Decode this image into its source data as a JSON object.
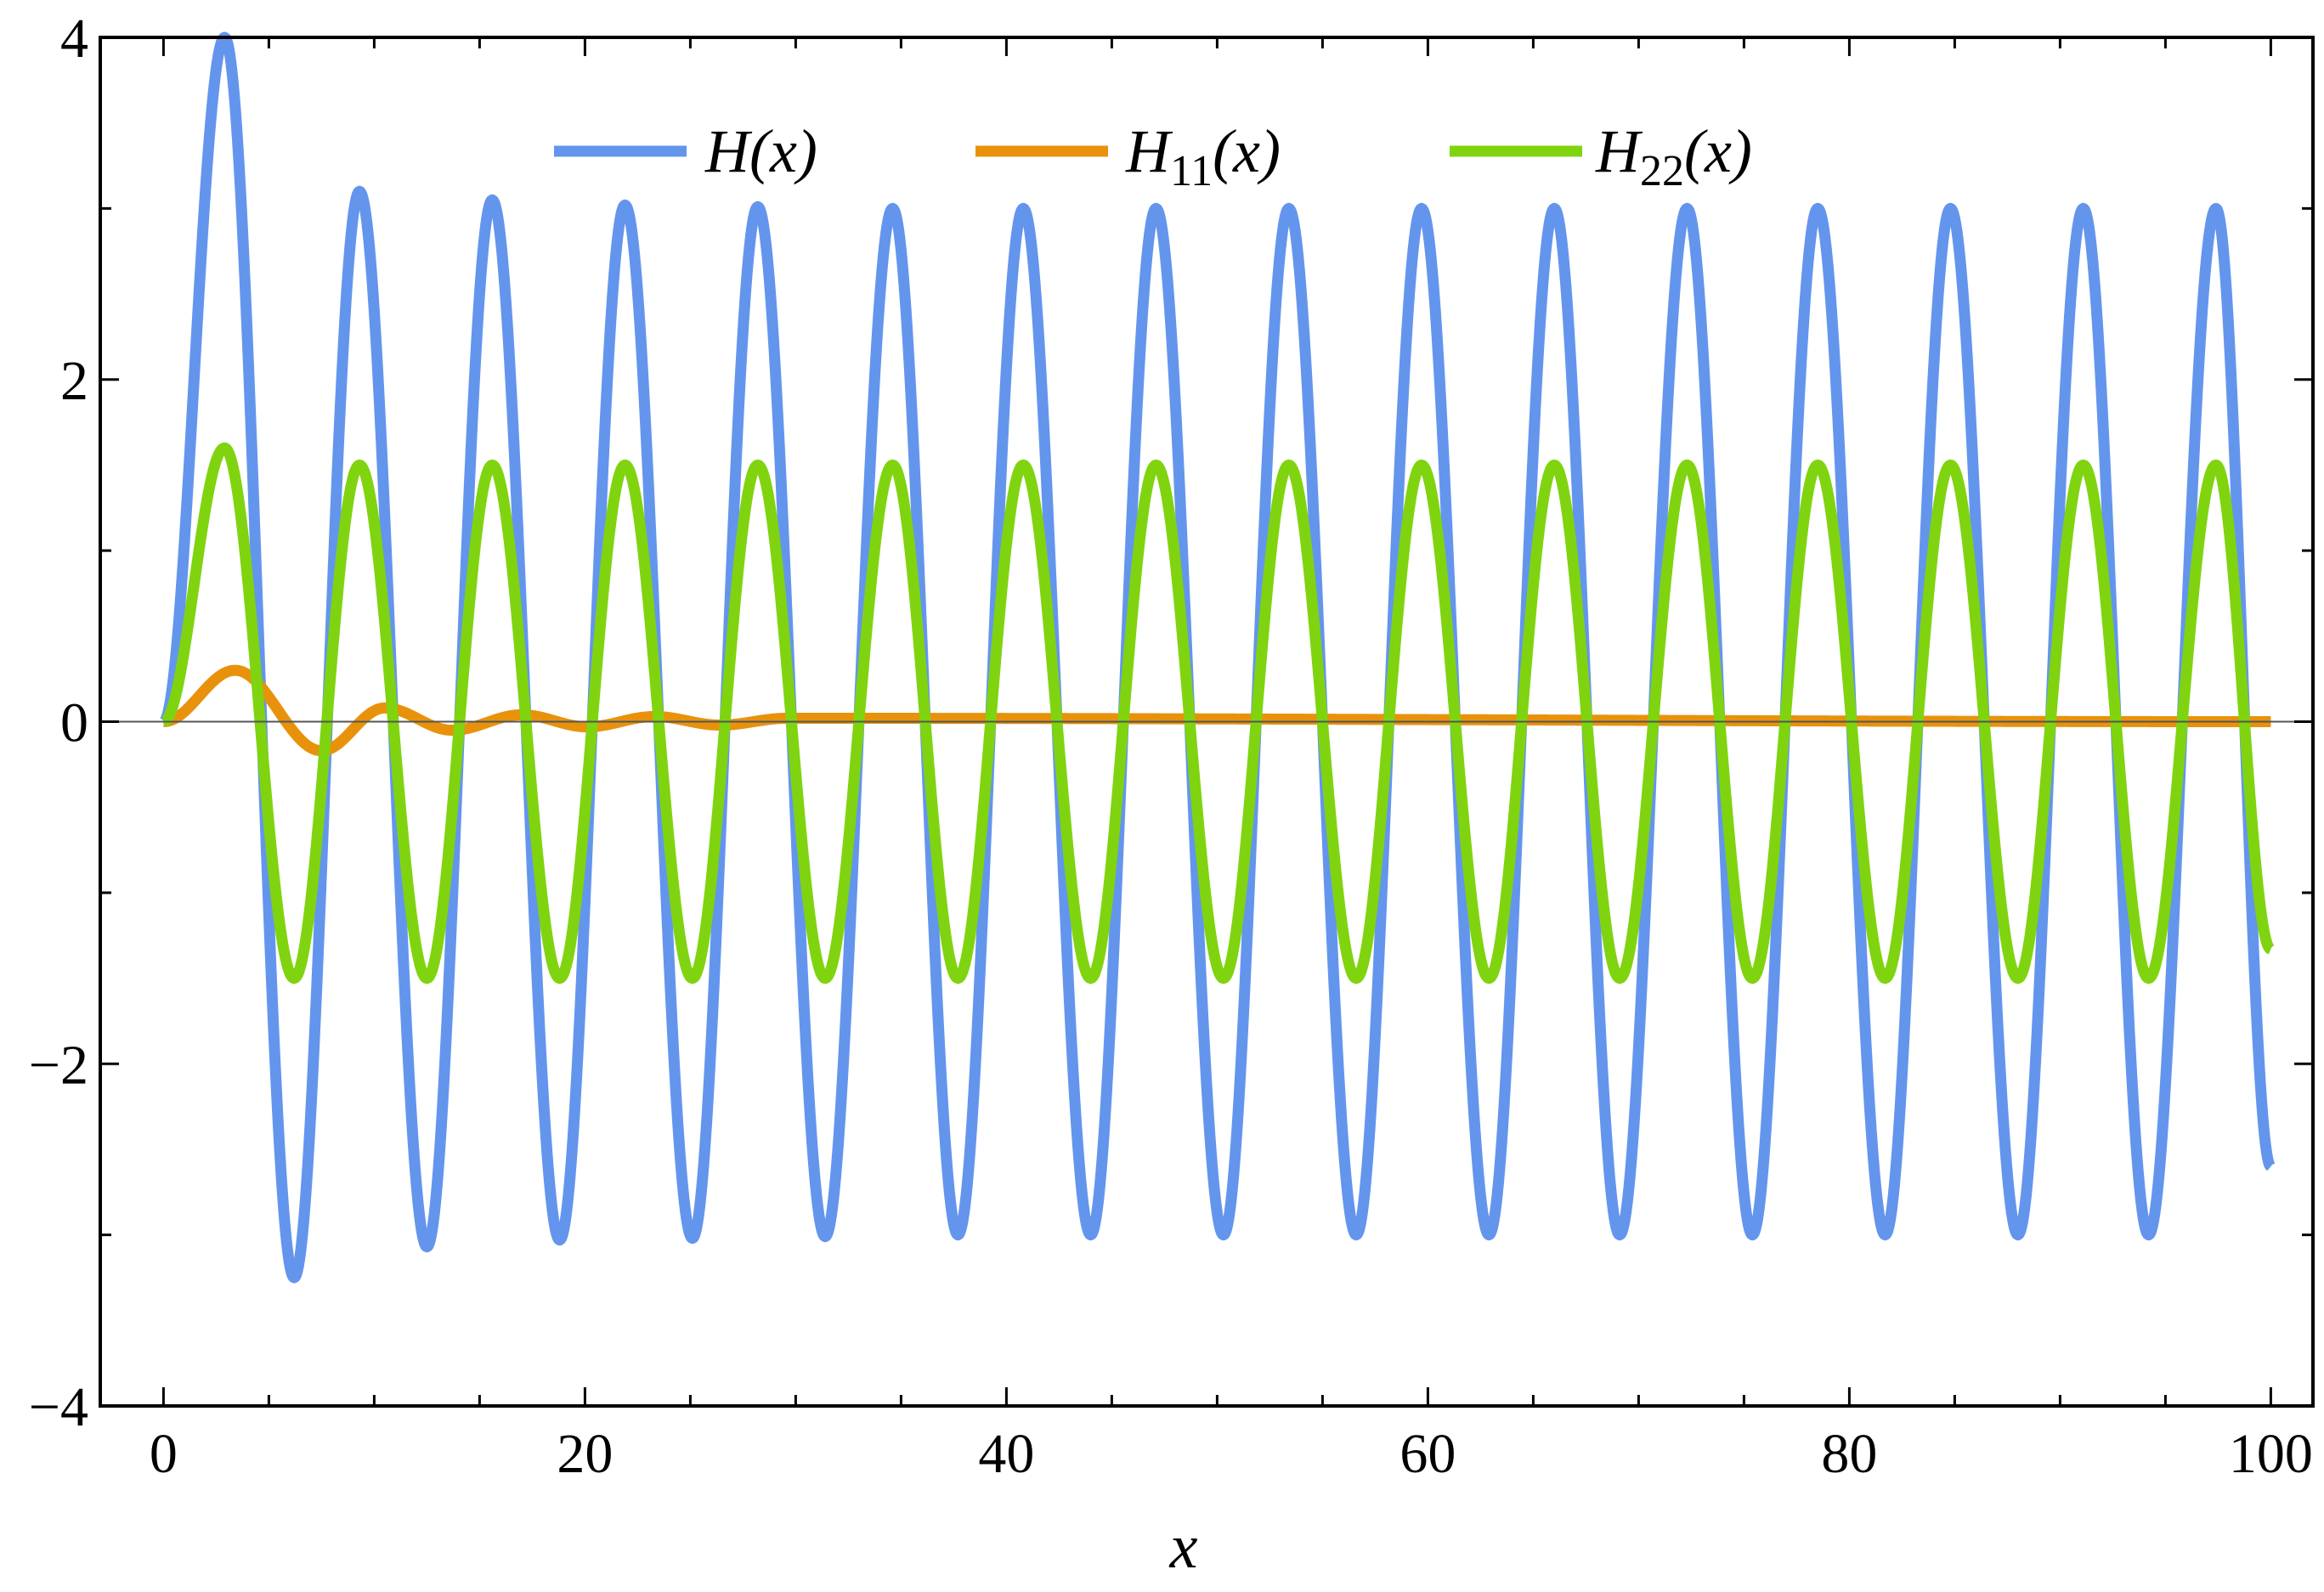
{
  "chart_data": {
    "type": "line",
    "title": "",
    "xlabel": "x",
    "ylabel": "",
    "xlim": [
      -3,
      102
    ],
    "ylim": [
      -4,
      4
    ],
    "xticks": [
      0,
      20,
      40,
      60,
      80,
      100
    ],
    "xtick_labels": [
      "0",
      "20",
      "40",
      "60",
      "80",
      "100"
    ],
    "xminor_step": 5,
    "yticks": [
      -4,
      -2,
      0,
      2,
      4
    ],
    "ytick_labels": [
      "−4",
      "−2",
      "0",
      "2",
      "4"
    ],
    "yminor_step": 1,
    "grid": false,
    "zero_line": true,
    "legend_position": "top-center",
    "legend": [
      {
        "key": "H",
        "base": "H",
        "sub": "",
        "arg": "(x)",
        "color": "#6495ED"
      },
      {
        "key": "H11",
        "base": "H",
        "sub": "11",
        "arg": "(x)",
        "color": "#E8920C"
      },
      {
        "key": "H22",
        "base": "H",
        "sub": "22",
        "arg": "(x)",
        "color": "#7FD40F"
      }
    ],
    "series": [
      {
        "name": "H(x)",
        "color": "#6495ED",
        "x_range": [
          0,
          100
        ],
        "samples": 2000,
        "points": [
          [
            0,
            0
          ],
          [
            2.9,
            4.0
          ],
          [
            6.2,
            -3.25
          ],
          [
            9.3,
            3.1
          ],
          [
            12.5,
            -3.07
          ],
          [
            15.6,
            3.05
          ],
          [
            18.8,
            -3.03
          ],
          [
            21.9,
            3.02
          ],
          [
            25.1,
            -3.02
          ],
          [
            28.2,
            3.01
          ],
          [
            31.4,
            -3.01
          ],
          [
            34.6,
            3.0
          ],
          [
            37.7,
            -3.0
          ],
          [
            40.8,
            3.0
          ],
          [
            44.0,
            -3.0
          ],
          [
            47.1,
            3.0
          ],
          [
            50.3,
            -3.0
          ],
          [
            53.4,
            3.0
          ],
          [
            56.6,
            -3.0
          ],
          [
            59.7,
            3.0
          ],
          [
            62.9,
            -3.0
          ],
          [
            66.0,
            3.0
          ],
          [
            69.1,
            -3.0
          ],
          [
            72.3,
            3.0
          ],
          [
            75.4,
            -3.0
          ],
          [
            78.5,
            3.0
          ],
          [
            81.7,
            -3.0
          ],
          [
            84.8,
            3.0
          ],
          [
            88.0,
            -3.0
          ],
          [
            91.1,
            3.0
          ],
          [
            94.2,
            -3.0
          ],
          [
            97.4,
            3.0
          ],
          [
            100,
            -2.6
          ]
        ]
      },
      {
        "name": "H11(x)",
        "color": "#E8920C",
        "x_range": [
          0,
          100
        ],
        "samples": 2000,
        "points": [
          [
            0,
            0
          ],
          [
            3.4,
            0.3
          ],
          [
            7.5,
            -0.17
          ],
          [
            10.5,
            0.08
          ],
          [
            13.7,
            -0.05
          ],
          [
            17.0,
            0.04
          ],
          [
            20.1,
            -0.03
          ],
          [
            23.3,
            0.03
          ],
          [
            26.4,
            -0.02
          ],
          [
            29.6,
            0.02
          ],
          [
            100,
            0.0
          ]
        ]
      },
      {
        "name": "H22(x)",
        "color": "#7FD40F",
        "x_range": [
          0,
          100
        ],
        "samples": 2000,
        "points": [
          [
            0,
            0
          ],
          [
            2.9,
            1.6
          ],
          [
            6.2,
            -1.5
          ],
          [
            9.3,
            1.5
          ],
          [
            12.5,
            -1.5
          ],
          [
            15.6,
            1.5
          ],
          [
            18.8,
            -1.5
          ],
          [
            21.9,
            1.5
          ],
          [
            25.1,
            -1.5
          ],
          [
            28.2,
            1.5
          ],
          [
            31.4,
            -1.5
          ],
          [
            34.6,
            1.5
          ],
          [
            37.7,
            -1.5
          ],
          [
            40.8,
            1.5
          ],
          [
            44.0,
            -1.5
          ],
          [
            47.1,
            1.5
          ],
          [
            50.3,
            -1.5
          ],
          [
            53.4,
            1.5
          ],
          [
            56.6,
            -1.5
          ],
          [
            59.7,
            1.5
          ],
          [
            62.9,
            -1.5
          ],
          [
            66.0,
            1.5
          ],
          [
            69.1,
            -1.5
          ],
          [
            72.3,
            1.5
          ],
          [
            75.4,
            -1.5
          ],
          [
            78.5,
            1.5
          ],
          [
            81.7,
            -1.5
          ],
          [
            84.8,
            1.5
          ],
          [
            88.0,
            -1.5
          ],
          [
            91.1,
            1.5
          ],
          [
            94.2,
            -1.5
          ],
          [
            97.4,
            1.5
          ],
          [
            100,
            -1.33
          ]
        ]
      }
    ]
  }
}
